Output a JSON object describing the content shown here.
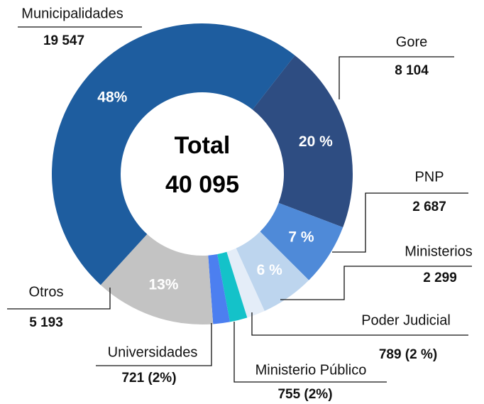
{
  "chart_data": {
    "type": "donut",
    "center_title": "Total",
    "center_value": "40 095",
    "categories": [
      "Gore",
      "PNP",
      "Ministerios",
      "Poder Judicial",
      "Ministerio Público",
      "Universidades",
      "Otros",
      "Municipalidades"
    ],
    "values": [
      8104,
      2687,
      2299,
      789,
      755,
      721,
      5193,
      19547
    ],
    "value_labels": [
      "8 104",
      "2 687",
      "2 299",
      "789 (2 %)",
      "755 (2%)",
      "721 (2%)",
      "5 193",
      "19 547"
    ],
    "percent_labels": [
      "20 %",
      "7 %",
      "6 %",
      null,
      null,
      null,
      "13%",
      "48%"
    ],
    "colors": [
      "#2e4d82",
      "#4f8ad8",
      "#bdd5ee",
      "#e4edf8",
      "#14c2c9",
      "#4c7ff0",
      "#c3c3c3",
      "#1e5d9f"
    ]
  }
}
